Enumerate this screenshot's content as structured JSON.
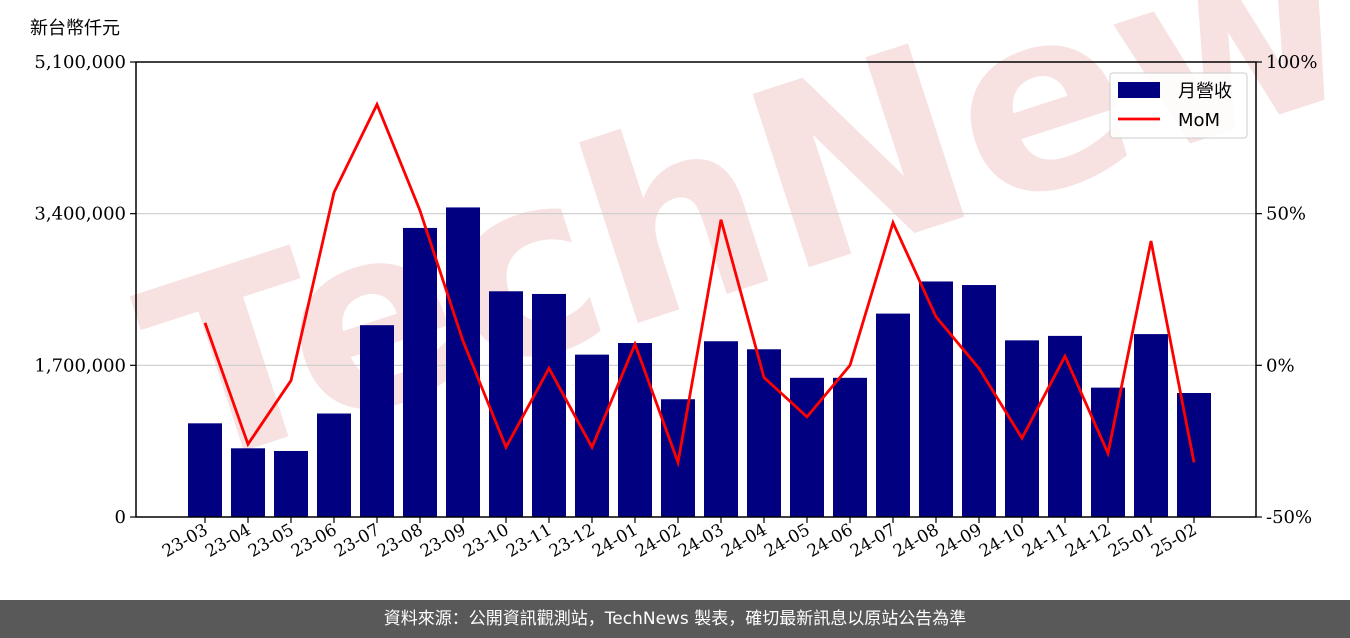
{
  "unit_label": "新台幣仟元",
  "footer_text": "資料來源：公開資訊觀測站，TechNews 製表，確切最新訊息以原站公告為準",
  "watermark_text": "TechNews",
  "colors": {
    "bar": "#000080",
    "line": "#ff0000",
    "grid": "#cccccc",
    "footer_bg": "#595959",
    "watermark": "#f0c8c8"
  },
  "chart_data": {
    "type": "bar",
    "categories": [
      "23-03",
      "23-04",
      "23-05",
      "23-06",
      "23-07",
      "23-08",
      "23-09",
      "23-10",
      "23-11",
      "23-12",
      "24-01",
      "24-02",
      "24-03",
      "24-04",
      "24-05",
      "24-06",
      "24-07",
      "24-08",
      "24-09",
      "24-10",
      "24-11",
      "24-12",
      "25-01",
      "25-02"
    ],
    "series": [
      {
        "name": "月營收",
        "type": "bar",
        "axis": "left",
        "values": [
          1050000,
          770000,
          740000,
          1160000,
          2150000,
          3240000,
          3470000,
          2530000,
          2500000,
          1820000,
          1950000,
          1320000,
          1970000,
          1880000,
          1560000,
          1560000,
          2280000,
          2640000,
          2600000,
          1980000,
          2030000,
          1450000,
          2050000,
          1390000
        ]
      },
      {
        "name": "MoM",
        "type": "line",
        "axis": "right",
        "values": [
          14,
          -26,
          -5,
          57,
          86,
          51,
          8,
          -27,
          -1,
          -27,
          7,
          -32,
          48,
          -4,
          -17,
          0,
          47,
          16,
          -1,
          -24,
          3,
          -29,
          41,
          -32
        ]
      }
    ],
    "y_left": {
      "ylim": [
        0,
        5100000
      ],
      "ticks": [
        0,
        1700000,
        3400000,
        5100000
      ],
      "tick_labels": [
        "0",
        "1,700,000",
        "3,400,000",
        "5,100,000"
      ]
    },
    "y_right": {
      "ylim": [
        -50,
        100
      ],
      "ticks": [
        -50,
        0,
        50,
        100
      ],
      "tick_labels": [
        "-50%",
        "0%",
        "50%",
        "100%"
      ]
    },
    "grid": "horizontal",
    "legend": {
      "position": "top-right",
      "entries": [
        "月營收",
        "MoM"
      ]
    }
  }
}
